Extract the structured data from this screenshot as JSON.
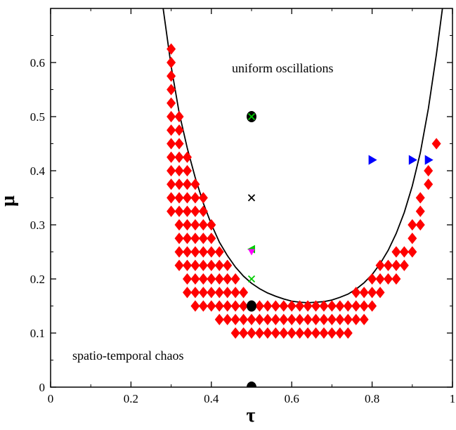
{
  "chart_data": {
    "type": "scatter",
    "xlabel": "τ",
    "ylabel": "μ",
    "xlim": [
      0,
      1
    ],
    "ylim": [
      0,
      0.7
    ],
    "x_ticks": [
      "0",
      "0.2",
      "0.4",
      "0.6",
      "0.8",
      "1"
    ],
    "y_ticks": [
      "0",
      "0.1",
      "0.2",
      "0.3",
      "0.4",
      "0.5",
      "0.6"
    ],
    "annotations": [
      "uniform oscillations",
      "spatio-temporal chaos"
    ],
    "grid": false,
    "boundary_curve": {
      "x": [
        0.28,
        0.3,
        0.32,
        0.34,
        0.36,
        0.38,
        0.4,
        0.42,
        0.44,
        0.46,
        0.48,
        0.5,
        0.52,
        0.54,
        0.56,
        0.58,
        0.6,
        0.62,
        0.64,
        0.66,
        0.68,
        0.7,
        0.72,
        0.74,
        0.76,
        0.78,
        0.8,
        0.82,
        0.84,
        0.86,
        0.88,
        0.9,
        0.92,
        0.94,
        0.96,
        0.975
      ],
      "y": [
        0.7,
        0.593,
        0.507,
        0.442,
        0.387,
        0.34,
        0.301,
        0.268,
        0.243,
        0.222,
        0.205,
        0.192,
        0.182,
        0.174,
        0.168,
        0.163,
        0.159,
        0.157,
        0.156,
        0.157,
        0.158,
        0.161,
        0.166,
        0.172,
        0.181,
        0.193,
        0.208,
        0.228,
        0.253,
        0.284,
        0.323,
        0.372,
        0.433,
        0.515,
        0.615,
        0.7
      ],
      "color": "#000000"
    },
    "series": [
      {
        "marker": "diamond",
        "color": "#ff0000",
        "points": [
          [
            0.3,
            0.625
          ],
          [
            0.3,
            0.6
          ],
          [
            0.3,
            0.575
          ],
          [
            0.3,
            0.55
          ],
          [
            0.3,
            0.525
          ],
          [
            0.3,
            0.5
          ],
          [
            0.3,
            0.475
          ],
          [
            0.3,
            0.45
          ],
          [
            0.3,
            0.425
          ],
          [
            0.3,
            0.4
          ],
          [
            0.3,
            0.375
          ],
          [
            0.3,
            0.35
          ],
          [
            0.3,
            0.325
          ],
          [
            0.32,
            0.5
          ],
          [
            0.32,
            0.475
          ],
          [
            0.32,
            0.45
          ],
          [
            0.32,
            0.425
          ],
          [
            0.32,
            0.4
          ],
          [
            0.32,
            0.375
          ],
          [
            0.32,
            0.35
          ],
          [
            0.32,
            0.325
          ],
          [
            0.32,
            0.3
          ],
          [
            0.32,
            0.275
          ],
          [
            0.32,
            0.25
          ],
          [
            0.32,
            0.225
          ],
          [
            0.34,
            0.425
          ],
          [
            0.34,
            0.4
          ],
          [
            0.34,
            0.375
          ],
          [
            0.34,
            0.35
          ],
          [
            0.34,
            0.325
          ],
          [
            0.34,
            0.3
          ],
          [
            0.34,
            0.275
          ],
          [
            0.34,
            0.25
          ],
          [
            0.34,
            0.225
          ],
          [
            0.34,
            0.2
          ],
          [
            0.34,
            0.175
          ],
          [
            0.36,
            0.375
          ],
          [
            0.36,
            0.35
          ],
          [
            0.36,
            0.325
          ],
          [
            0.36,
            0.3
          ],
          [
            0.36,
            0.275
          ],
          [
            0.36,
            0.25
          ],
          [
            0.36,
            0.225
          ],
          [
            0.36,
            0.2
          ],
          [
            0.36,
            0.175
          ],
          [
            0.36,
            0.15
          ],
          [
            0.38,
            0.35
          ],
          [
            0.38,
            0.325
          ],
          [
            0.38,
            0.3
          ],
          [
            0.38,
            0.275
          ],
          [
            0.38,
            0.25
          ],
          [
            0.38,
            0.225
          ],
          [
            0.38,
            0.2
          ],
          [
            0.38,
            0.175
          ],
          [
            0.38,
            0.15
          ],
          [
            0.4,
            0.3
          ],
          [
            0.4,
            0.275
          ],
          [
            0.4,
            0.25
          ],
          [
            0.4,
            0.225
          ],
          [
            0.4,
            0.2
          ],
          [
            0.4,
            0.175
          ],
          [
            0.4,
            0.15
          ],
          [
            0.42,
            0.25
          ],
          [
            0.42,
            0.225
          ],
          [
            0.42,
            0.2
          ],
          [
            0.42,
            0.175
          ],
          [
            0.42,
            0.15
          ],
          [
            0.42,
            0.125
          ],
          [
            0.44,
            0.225
          ],
          [
            0.44,
            0.2
          ],
          [
            0.44,
            0.175
          ],
          [
            0.44,
            0.15
          ],
          [
            0.44,
            0.125
          ],
          [
            0.46,
            0.2
          ],
          [
            0.46,
            0.175
          ],
          [
            0.46,
            0.15
          ],
          [
            0.46,
            0.125
          ],
          [
            0.46,
            0.1
          ],
          [
            0.48,
            0.175
          ],
          [
            0.48,
            0.15
          ],
          [
            0.48,
            0.125
          ],
          [
            0.48,
            0.1
          ],
          [
            0.5,
            0.125
          ],
          [
            0.5,
            0.1
          ],
          [
            0.52,
            0.15
          ],
          [
            0.52,
            0.125
          ],
          [
            0.52,
            0.1
          ],
          [
            0.54,
            0.15
          ],
          [
            0.54,
            0.125
          ],
          [
            0.54,
            0.1
          ],
          [
            0.56,
            0.15
          ],
          [
            0.56,
            0.125
          ],
          [
            0.56,
            0.1
          ],
          [
            0.58,
            0.15
          ],
          [
            0.58,
            0.125
          ],
          [
            0.58,
            0.1
          ],
          [
            0.6,
            0.15
          ],
          [
            0.6,
            0.125
          ],
          [
            0.6,
            0.1
          ],
          [
            0.62,
            0.15
          ],
          [
            0.62,
            0.125
          ],
          [
            0.62,
            0.1
          ],
          [
            0.64,
            0.15
          ],
          [
            0.64,
            0.125
          ],
          [
            0.64,
            0.1
          ],
          [
            0.66,
            0.15
          ],
          [
            0.66,
            0.125
          ],
          [
            0.66,
            0.1
          ],
          [
            0.68,
            0.15
          ],
          [
            0.68,
            0.125
          ],
          [
            0.68,
            0.1
          ],
          [
            0.7,
            0.15
          ],
          [
            0.7,
            0.125
          ],
          [
            0.7,
            0.1
          ],
          [
            0.72,
            0.15
          ],
          [
            0.72,
            0.125
          ],
          [
            0.72,
            0.1
          ],
          [
            0.74,
            0.15
          ],
          [
            0.74,
            0.125
          ],
          [
            0.74,
            0.1
          ],
          [
            0.76,
            0.175
          ],
          [
            0.76,
            0.15
          ],
          [
            0.76,
            0.125
          ],
          [
            0.78,
            0.175
          ],
          [
            0.78,
            0.15
          ],
          [
            0.78,
            0.125
          ],
          [
            0.8,
            0.2
          ],
          [
            0.8,
            0.175
          ],
          [
            0.8,
            0.15
          ],
          [
            0.82,
            0.225
          ],
          [
            0.82,
            0.2
          ],
          [
            0.82,
            0.175
          ],
          [
            0.84,
            0.225
          ],
          [
            0.84,
            0.2
          ],
          [
            0.86,
            0.25
          ],
          [
            0.86,
            0.225
          ],
          [
            0.86,
            0.2
          ],
          [
            0.88,
            0.25
          ],
          [
            0.88,
            0.225
          ],
          [
            0.9,
            0.3
          ],
          [
            0.9,
            0.275
          ],
          [
            0.9,
            0.25
          ],
          [
            0.92,
            0.35
          ],
          [
            0.92,
            0.325
          ],
          [
            0.92,
            0.3
          ],
          [
            0.94,
            0.4
          ],
          [
            0.94,
            0.375
          ],
          [
            0.96,
            0.45
          ]
        ]
      },
      {
        "marker": "triangle-right",
        "color": "#0000ff",
        "points": [
          [
            0.8,
            0.42
          ],
          [
            0.9,
            0.42
          ],
          [
            0.94,
            0.42
          ]
        ]
      },
      {
        "marker": "circle",
        "color": "#000000",
        "points": [
          [
            0.5,
            0.5
          ],
          [
            0.5,
            0.15
          ],
          [
            0.5,
            0.0
          ]
        ]
      },
      {
        "marker": "x",
        "color": "#00cc00",
        "points": [
          [
            0.5,
            0.5
          ],
          [
            0.5,
            0.2
          ]
        ]
      },
      {
        "marker": "x",
        "color": "#000000",
        "points": [
          [
            0.5,
            0.35
          ]
        ]
      },
      {
        "marker": "triangle-left",
        "color": "#00cc00",
        "points": [
          [
            0.5,
            0.255
          ]
        ]
      },
      {
        "marker": "triangle-down",
        "color": "#ff00ff",
        "points": [
          [
            0.5,
            0.25
          ]
        ]
      }
    ]
  }
}
